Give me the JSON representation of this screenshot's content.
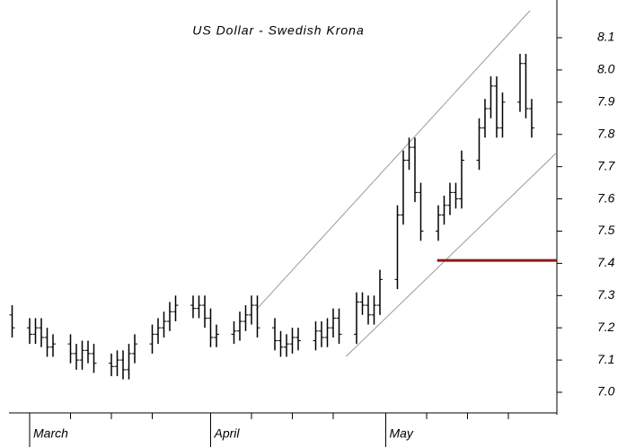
{
  "chart_data": {
    "type": "ohlc",
    "title": "US Dollar - Swedish Krona",
    "color": "#000000",
    "xlim": [
      -3.54,
      90.31
    ],
    "ylim": [
      6.936,
      8.217
    ],
    "xticks": [
      {
        "value": 0,
        "label": "March"
      },
      {
        "value": 31,
        "label": "April"
      },
      {
        "value": 61,
        "label": "May"
      }
    ],
    "x_minor_ticks": [
      7,
      14,
      21,
      38,
      45,
      52,
      68,
      75,
      82
    ],
    "yticks": [
      {
        "value": 7,
        "label": "7.0"
      },
      7.1,
      7.2,
      7.3,
      7.4,
      7.5,
      7.6,
      7.7,
      7.8,
      7.9,
      {
        "value": 8,
        "label": "8.0"
      },
      8.1
    ],
    "series": {
      "x": [
        -3,
        0,
        1,
        2,
        3,
        4,
        7,
        8,
        9,
        10,
        11,
        14,
        15,
        16,
        17,
        18,
        21,
        22,
        23,
        24,
        25,
        28,
        29,
        30,
        31,
        32,
        35,
        36,
        37,
        38,
        39,
        42,
        43,
        44,
        45,
        46,
        49,
        50,
        51,
        52,
        53,
        56,
        57,
        58,
        59,
        60,
        63,
        64,
        65,
        66,
        67,
        70,
        71,
        72,
        73,
        74,
        77,
        78,
        79,
        80,
        81,
        84,
        85,
        86
      ],
      "open": [
        7.24,
        7.2,
        7.18,
        7.2,
        7.17,
        7.14,
        7.15,
        7.12,
        7.1,
        7.13,
        7.12,
        7.09,
        7.08,
        7.1,
        7.07,
        7.12,
        7.15,
        7.18,
        7.2,
        7.22,
        7.25,
        7.27,
        7.26,
        7.27,
        7.23,
        7.17,
        7.18,
        7.19,
        7.22,
        7.24,
        7.27,
        7.2,
        7.16,
        7.14,
        7.15,
        7.17,
        7.16,
        7.19,
        7.17,
        7.2,
        7.23,
        7.18,
        7.28,
        7.27,
        7.24,
        7.27,
        7.35,
        7.55,
        7.72,
        7.76,
        7.62,
        7.5,
        7.55,
        7.58,
        7.62,
        7.6,
        7.72,
        7.82,
        7.88,
        7.95,
        7.82,
        7.9,
        8.02,
        7.88
      ],
      "high": [
        7.27,
        7.23,
        7.23,
        7.23,
        7.2,
        7.18,
        7.18,
        7.15,
        7.16,
        7.16,
        7.15,
        7.12,
        7.13,
        7.13,
        7.15,
        7.18,
        7.21,
        7.23,
        7.25,
        7.28,
        7.3,
        7.3,
        7.3,
        7.3,
        7.26,
        7.21,
        7.22,
        7.25,
        7.27,
        7.3,
        7.3,
        7.23,
        7.19,
        7.18,
        7.2,
        7.2,
        7.22,
        7.22,
        7.23,
        7.26,
        7.26,
        7.31,
        7.31,
        7.3,
        7.3,
        7.38,
        7.58,
        7.75,
        7.79,
        7.79,
        7.65,
        7.58,
        7.61,
        7.65,
        7.65,
        7.75,
        7.85,
        7.91,
        7.98,
        7.98,
        7.93,
        8.05,
        8.05,
        7.91
      ],
      "low": [
        7.17,
        7.15,
        7.15,
        7.14,
        7.11,
        7.11,
        7.09,
        7.07,
        7.07,
        7.09,
        7.06,
        7.05,
        7.05,
        7.04,
        7.04,
        7.09,
        7.12,
        7.15,
        7.17,
        7.19,
        7.22,
        7.23,
        7.23,
        7.2,
        7.14,
        7.14,
        7.15,
        7.16,
        7.19,
        7.21,
        7.17,
        7.13,
        7.11,
        7.11,
        7.12,
        7.13,
        7.13,
        7.14,
        7.14,
        7.17,
        7.15,
        7.15,
        7.24,
        7.21,
        7.21,
        7.24,
        7.32,
        7.52,
        7.69,
        7.59,
        7.47,
        7.47,
        7.52,
        7.55,
        7.57,
        7.57,
        7.69,
        7.79,
        7.85,
        7.79,
        7.79,
        7.87,
        7.85,
        7.79
      ],
      "close": [
        7.2,
        7.18,
        7.2,
        7.17,
        7.14,
        7.15,
        7.12,
        7.1,
        7.13,
        7.12,
        7.09,
        7.08,
        7.1,
        7.07,
        7.12,
        7.15,
        7.18,
        7.2,
        7.22,
        7.25,
        7.27,
        7.26,
        7.27,
        7.23,
        7.17,
        7.18,
        7.19,
        7.22,
        7.24,
        7.27,
        7.2,
        7.16,
        7.14,
        7.15,
        7.17,
        7.16,
        7.19,
        7.17,
        7.2,
        7.23,
        7.18,
        7.28,
        7.27,
        7.24,
        7.27,
        7.35,
        7.55,
        7.72,
        7.76,
        7.62,
        7.5,
        7.55,
        7.58,
        7.62,
        7.6,
        7.72,
        7.82,
        7.88,
        7.95,
        7.82,
        7.9,
        8.02,
        7.88,
        7.82
      ]
    },
    "lines": [
      {
        "color": "#9a9a9a",
        "x": [
          38.8,
          85.7
        ],
        "y": [
          7.256,
          8.184
        ]
      },
      {
        "color": "#9a9a9a",
        "x": [
          54.2,
          90.3
        ],
        "y": [
          7.111,
          7.744
        ]
      },
      {
        "color": "#8b1a1a",
        "x": [
          69.8,
          90.3
        ],
        "y": [
          7.409,
          7.409
        ]
      }
    ]
  }
}
